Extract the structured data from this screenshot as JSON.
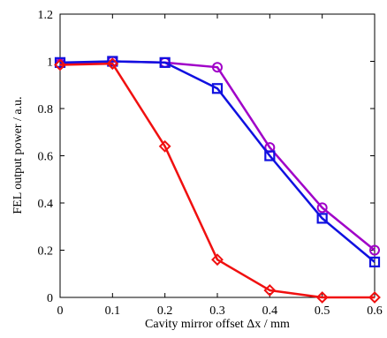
{
  "chart_data": {
    "type": "line",
    "xlabel": "Cavity mirror offset Δx / mm",
    "ylabel": "FEL output power / a.u.",
    "xlim": [
      0,
      0.6
    ],
    "ylim": [
      0,
      1.2
    ],
    "x_ticks": [
      "0",
      "0.1",
      "0.2",
      "0.3",
      "0.4",
      "0.5",
      "0.6"
    ],
    "y_ticks": [
      "0",
      "0.2",
      "0.4",
      "0.6",
      "0.8",
      "1",
      "1.2"
    ],
    "grid": false,
    "legend": false,
    "x": [
      0,
      0.1,
      0.2,
      0.3,
      0.4,
      0.5,
      0.6
    ],
    "series": [
      {
        "color": "#a000c8",
        "marker": "circle",
        "values": [
          0.99,
          1.0,
          0.995,
          0.975,
          0.635,
          0.38,
          0.2
        ]
      },
      {
        "color": "#1010e0",
        "marker": "square",
        "values": [
          0.995,
          1.0,
          0.995,
          0.885,
          0.6,
          0.335,
          0.15
        ]
      },
      {
        "color": "#f01010",
        "marker": "diamond",
        "values": [
          0.985,
          0.99,
          0.64,
          0.16,
          0.03,
          0.0,
          0.0
        ]
      }
    ]
  }
}
